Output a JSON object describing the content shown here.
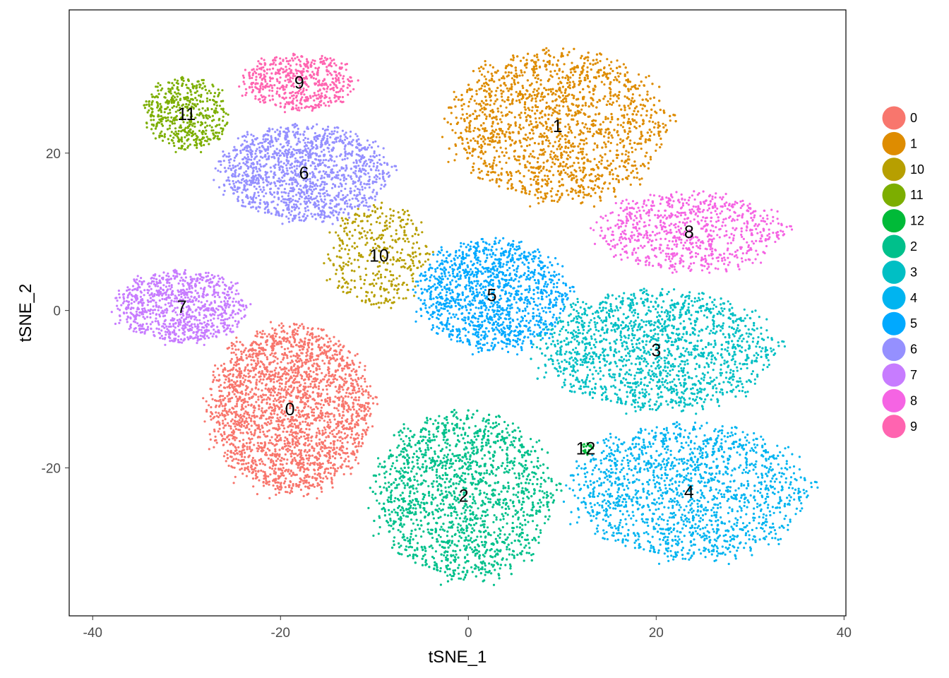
{
  "chart_data": {
    "type": "scatter",
    "xlabel": "tSNE_1",
    "ylabel": "tSNE_2",
    "xlim": [
      -42.5,
      40.2
    ],
    "ylim": [
      -38.8,
      38.2
    ],
    "xticks": [
      -40,
      -20,
      0,
      20,
      40
    ],
    "yticks": [
      -20,
      0,
      20
    ],
    "grid": false,
    "legend_position": "right",
    "clusters": [
      {
        "label": "0",
        "color": "#F8766D",
        "center": [
          -19,
          -12.5
        ],
        "spread": [
          8.5,
          10.5
        ],
        "n": 2400
      },
      {
        "label": "1",
        "color": "#DE8C00",
        "center": [
          9.5,
          23.5
        ],
        "spread": [
          11.5,
          9.5
        ],
        "n": 2500
      },
      {
        "label": "10",
        "color": "#B79F00",
        "center": [
          -9.5,
          7
        ],
        "spread": [
          5.5,
          6.5
        ],
        "n": 400
      },
      {
        "label": "11",
        "color": "#7CAE00",
        "center": [
          -30,
          25
        ],
        "spread": [
          4.5,
          4.5
        ],
        "n": 500
      },
      {
        "label": "12",
        "color": "#00BA38",
        "center": [
          12.5,
          -17.5
        ],
        "spread": [
          0.8,
          0.8
        ],
        "n": 20
      },
      {
        "label": "2",
        "color": "#00C08B",
        "center": [
          -0.5,
          -23.5
        ],
        "spread": [
          9.5,
          10.5
        ],
        "n": 2300
      },
      {
        "label": "3",
        "color": "#00BFC4",
        "center": [
          20,
          -5
        ],
        "spread": [
          12.5,
          7.5
        ],
        "n": 1900
      },
      {
        "label": "4",
        "color": "#00B4F0",
        "center": [
          23.5,
          -23
        ],
        "spread": [
          12.5,
          8.5
        ],
        "n": 1700
      },
      {
        "label": "5",
        "color": "#00A9FF",
        "center": [
          2.5,
          2
        ],
        "spread": [
          8,
          7
        ],
        "n": 1300
      },
      {
        "label": "6",
        "color": "#9590FF",
        "center": [
          -17.5,
          17.5
        ],
        "spread": [
          9,
          6
        ],
        "n": 1400
      },
      {
        "label": "7",
        "color": "#C77CFF",
        "center": [
          -30.5,
          0.5
        ],
        "spread": [
          7,
          4.5
        ],
        "n": 900
      },
      {
        "label": "8",
        "color": "#F564E3",
        "center": [
          23.5,
          10
        ],
        "spread": [
          10,
          5
        ],
        "n": 800
      },
      {
        "label": "9",
        "color": "#FF64B0",
        "center": [
          -18,
          29
        ],
        "spread": [
          6,
          3.5
        ],
        "n": 550
      }
    ]
  }
}
